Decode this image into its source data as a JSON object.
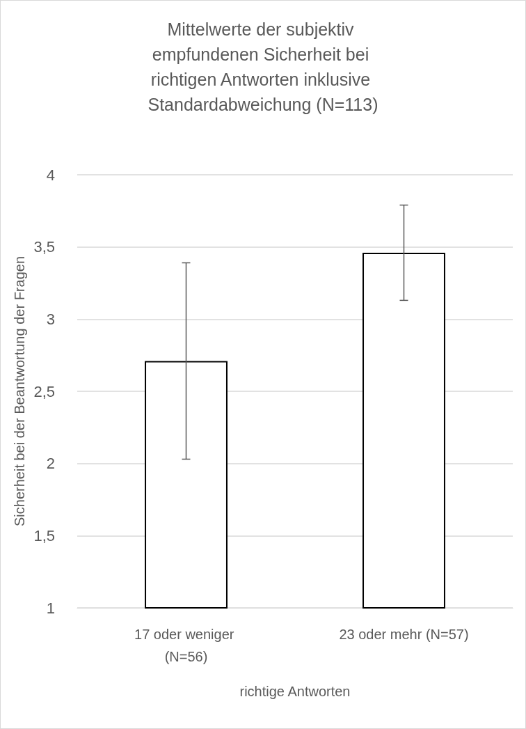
{
  "chart_data": {
    "type": "bar",
    "title": "Mittelwerte der subjektiv empfundenen Sicherheit bei richtigen Antworten inklusive Standardabweichung (N=113)",
    "xlabel": "richtige Antworten",
    "ylabel": "Sicherheit bei der Beantwortung der Fragen",
    "categories": [
      "17 oder weniger (N=56)",
      "23 oder mehr (N=57)"
    ],
    "values": [
      2.71,
      3.46
    ],
    "errors": [
      0.68,
      0.33
    ],
    "color": "#ffffff",
    "ylim": [
      1,
      4
    ],
    "yticks": [
      1,
      {
        "value": 1.5,
        "label": "1,5"
      },
      2,
      {
        "value": 2.5,
        "label": "2,5"
      },
      3,
      {
        "value": 3.5,
        "label": "3,5"
      },
      4
    ],
    "grid": "y"
  }
}
